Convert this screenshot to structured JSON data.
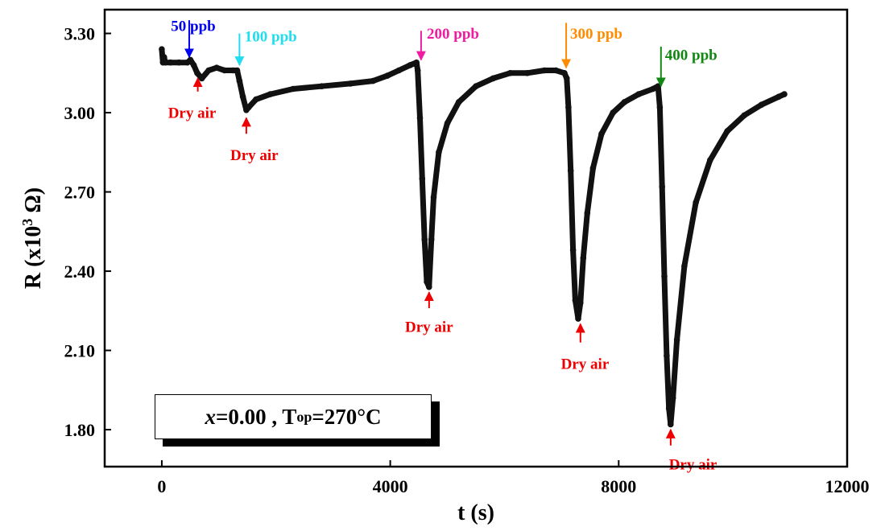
{
  "chart_data": {
    "type": "line",
    "xlabel": "t (s)",
    "ylabel_main": "R (x10",
    "ylabel_sup": "3",
    "ylabel_tail": " Ω)",
    "xlim": [
      -1000,
      12000
    ],
    "ylim": [
      1.66,
      3.39
    ],
    "xticks": [
      0,
      4000,
      8000,
      12000
    ],
    "xtick_labels": [
      "0",
      "4000",
      "8000",
      "12000"
    ],
    "yticks": [
      1.8,
      2.1,
      2.4,
      2.7,
      3.0,
      3.3
    ],
    "ytick_labels": [
      "1.80",
      "2.10",
      "2.40",
      "2.70",
      "3.00",
      "3.30"
    ],
    "grid": false,
    "series": [
      {
        "color": "#111111",
        "x": [
          0,
          20,
          40,
          60,
          150,
          300,
          450,
          500,
          560,
          620,
          700,
          820,
          960,
          1100,
          1250,
          1320,
          1360,
          1420,
          1480,
          1520,
          1650,
          1900,
          2300,
          2800,
          3300,
          3700,
          3950,
          4150,
          4350,
          4460,
          4480,
          4520,
          4560,
          4600,
          4640,
          4680,
          4720,
          4760,
          4850,
          5000,
          5200,
          5500,
          5800,
          6100,
          6400,
          6700,
          6900,
          7050,
          7090,
          7120,
          7160,
          7200,
          7240,
          7290,
          7330,
          7380,
          7450,
          7550,
          7700,
          7900,
          8100,
          8350,
          8600,
          8690,
          8720,
          8760,
          8800,
          8840,
          8880,
          8910,
          8950,
          9020,
          9150,
          9350,
          9600,
          9900,
          10200,
          10500,
          10800,
          10900
        ],
        "y": [
          3.24,
          3.19,
          3.21,
          3.19,
          3.19,
          3.19,
          3.19,
          3.2,
          3.18,
          3.15,
          3.13,
          3.16,
          3.17,
          3.16,
          3.16,
          3.16,
          3.12,
          3.06,
          3.01,
          3.02,
          3.05,
          3.07,
          3.09,
          3.1,
          3.11,
          3.12,
          3.14,
          3.16,
          3.18,
          3.19,
          3.16,
          2.98,
          2.75,
          2.52,
          2.36,
          2.34,
          2.52,
          2.68,
          2.85,
          2.96,
          3.04,
          3.1,
          3.13,
          3.15,
          3.15,
          3.16,
          3.16,
          3.15,
          3.13,
          3.02,
          2.78,
          2.48,
          2.29,
          2.22,
          2.28,
          2.45,
          2.62,
          2.79,
          2.92,
          3.0,
          3.04,
          3.07,
          3.09,
          3.1,
          3.02,
          2.72,
          2.38,
          2.08,
          1.88,
          1.82,
          1.92,
          2.14,
          2.42,
          2.66,
          2.82,
          2.93,
          2.99,
          3.03,
          3.06,
          3.07
        ]
      }
    ],
    "annotations": [
      {
        "text": "50 ppb",
        "color": "#0000ee",
        "arrow_x": 480,
        "arrow_from_y": 3.35,
        "arrow_to_y": 3.21,
        "label_x": 160,
        "label_y": 3.31,
        "anchor": "start"
      },
      {
        "text": "100 ppb",
        "color": "#22ddee",
        "arrow_x": 1360,
        "arrow_from_y": 3.3,
        "arrow_to_y": 3.18,
        "label_x": 1450,
        "label_y": 3.27,
        "anchor": "start"
      },
      {
        "text": "200 ppb",
        "color": "#ee1ca0",
        "arrow_x": 4540,
        "arrow_from_y": 3.31,
        "arrow_to_y": 3.2,
        "label_x": 4640,
        "label_y": 3.28,
        "anchor": "start"
      },
      {
        "text": "300 ppb",
        "color": "#ff8c00",
        "arrow_x": 7080,
        "arrow_from_y": 3.34,
        "arrow_to_y": 3.17,
        "label_x": 7150,
        "label_y": 3.28,
        "anchor": "start"
      },
      {
        "text": "400 ppb",
        "color": "#118811",
        "arrow_x": 8740,
        "arrow_from_y": 3.25,
        "arrow_to_y": 3.1,
        "label_x": 8810,
        "label_y": 3.2,
        "anchor": "start"
      },
      {
        "text": "Dry air",
        "color": "#ee0000",
        "arrow_x": 630,
        "arrow_from_y": 3.08,
        "arrow_to_y": 3.13,
        "label_x": 530,
        "label_y": 2.98,
        "anchor": "middle"
      },
      {
        "text": "Dry air",
        "color": "#ee0000",
        "arrow_x": 1480,
        "arrow_from_y": 2.92,
        "arrow_to_y": 2.98,
        "label_x": 1620,
        "label_y": 2.82,
        "anchor": "middle"
      },
      {
        "text": "Dry air",
        "color": "#ee0000",
        "arrow_x": 4680,
        "arrow_from_y": 2.26,
        "arrow_to_y": 2.32,
        "label_x": 4680,
        "label_y": 2.17,
        "anchor": "middle"
      },
      {
        "text": "Dry air",
        "color": "#ee0000",
        "arrow_x": 7330,
        "arrow_from_y": 2.13,
        "arrow_to_y": 2.2,
        "label_x": 7410,
        "label_y": 2.03,
        "anchor": "middle"
      },
      {
        "text": "Dry air",
        "color": "#ee0000",
        "arrow_x": 8910,
        "arrow_from_y": 1.74,
        "arrow_to_y": 1.8,
        "label_x": 9300,
        "label_y": 1.65,
        "anchor": "middle"
      }
    ]
  },
  "info_box": {
    "x_symbol": "x",
    "x_value": "=0.00 , T",
    "sub": "op",
    "tail": "=270°C"
  }
}
